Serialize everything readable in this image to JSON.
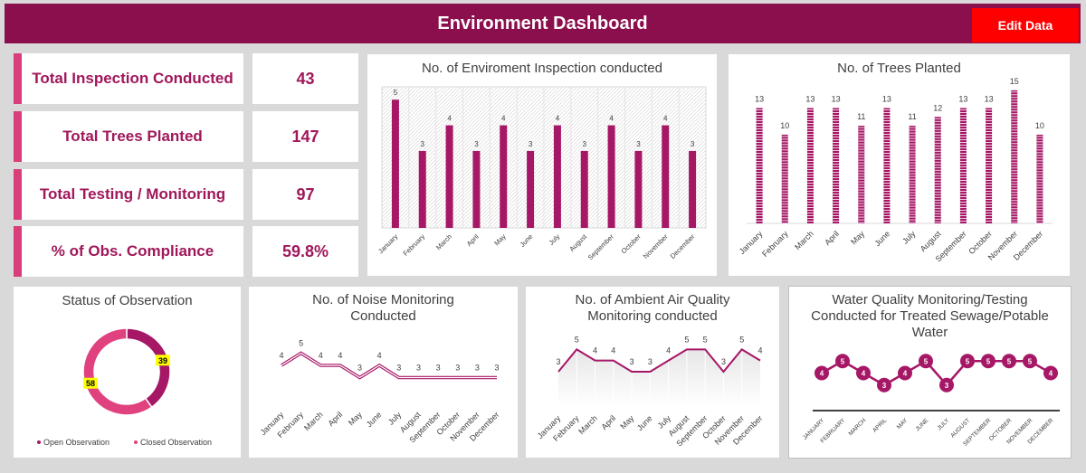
{
  "header": {
    "title": "Environment Dashboard",
    "edit_button": "Edit Data"
  },
  "kpis": [
    {
      "label": "Total Inspection Conducted",
      "value": "43"
    },
    {
      "label": "Total Trees Planted",
      "value": "147"
    },
    {
      "label": "Total Testing / Monitoring",
      "value": "97"
    },
    {
      "label": "% of Obs. Compliance",
      "value": "59.8%"
    }
  ],
  "colors": {
    "brand": "#8b0f4d",
    "accent": "#a0175a",
    "bar": "#a61766",
    "kpi_bar": "#d93e7a",
    "button": "#ff0000",
    "donut_open": "#a61766",
    "donut_closed": "#e0427f",
    "label_highlight": "#ffff00"
  },
  "chart_data": [
    {
      "id": "inspection",
      "type": "bar",
      "title": "No. of Enviroment Inspection conducted",
      "categories": [
        "January",
        "February",
        "March",
        "April",
        "May",
        "June",
        "July",
        "August",
        "September",
        "October",
        "November",
        "December"
      ],
      "values": [
        5,
        3,
        4,
        3,
        4,
        3,
        4,
        3,
        4,
        3,
        4,
        3
      ],
      "ylim": [
        0,
        5.5
      ]
    },
    {
      "id": "trees",
      "type": "bar",
      "title": "No. of Trees Planted",
      "categories": [
        "January",
        "February",
        "March",
        "April",
        "May",
        "June",
        "July",
        "August",
        "September",
        "October",
        "November",
        "December"
      ],
      "values": [
        13,
        10,
        13,
        13,
        11,
        13,
        11,
        12,
        13,
        13,
        15,
        10
      ],
      "ylim": [
        0,
        16
      ]
    },
    {
      "id": "observation",
      "type": "pie",
      "title": "Status of Observation",
      "labels": [
        "Open Observation",
        "Closed Observation"
      ],
      "values": [
        39,
        58
      ]
    },
    {
      "id": "noise",
      "type": "line",
      "title": "No. of Noise Monitoring Conducted",
      "categories": [
        "January",
        "February",
        "March",
        "April",
        "May",
        "June",
        "July",
        "August",
        "September",
        "October",
        "November",
        "December"
      ],
      "values": [
        4,
        5,
        4,
        4,
        3,
        4,
        3,
        3,
        3,
        3,
        3,
        3
      ],
      "ylim": [
        0,
        6
      ]
    },
    {
      "id": "air",
      "type": "area",
      "title": "No. of Ambient Air Quality Monitoring conducted",
      "categories": [
        "January",
        "February",
        "March",
        "April",
        "May",
        "June",
        "July",
        "August",
        "September",
        "October",
        "November",
        "December"
      ],
      "values": [
        3,
        5,
        4,
        4,
        3,
        3,
        4,
        5,
        5,
        3,
        5,
        4
      ],
      "ylim": [
        0,
        6
      ]
    },
    {
      "id": "water",
      "type": "line",
      "title": "Water Quality Monitoring/Testing Conducted for Treated Sewage/Potable Water",
      "categories": [
        "JANUARY",
        "FEBRUARY",
        "MARCH",
        "APRIL",
        "MAY",
        "JUNE",
        "JULY",
        "AUGUST",
        "SEPTEMBER",
        "OCTOBER",
        "NOVEMBER",
        "DECEMBER"
      ],
      "values": [
        4,
        5,
        4,
        3,
        4,
        5,
        3,
        5,
        5,
        5,
        5,
        4
      ],
      "ylim": [
        2,
        6
      ]
    }
  ]
}
